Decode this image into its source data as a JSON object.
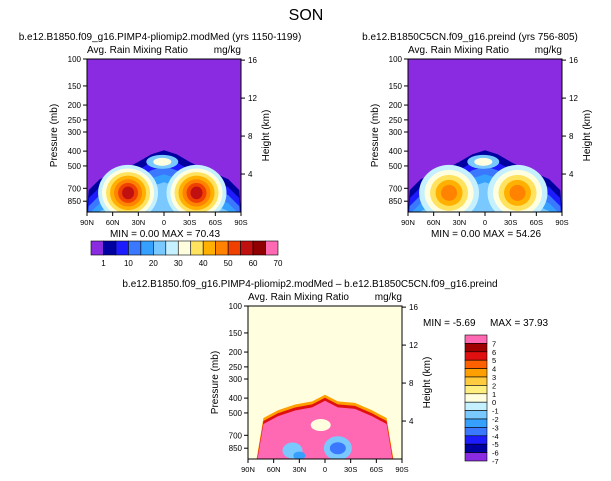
{
  "figure_title": "SON",
  "colors": {
    "seq": [
      "#8a2be2",
      "#0000a0",
      "#1c1cff",
      "#3a78ff",
      "#36a0ff",
      "#79c8ff",
      "#c4f0ff",
      "#ffffe0",
      "#ffe25e",
      "#ffb000",
      "#ff8200",
      "#f04000",
      "#c01010",
      "#900000",
      "#ff69b4"
    ],
    "diff": [
      "#8a2be2",
      "#0000a0",
      "#1c1cff",
      "#3a78ff",
      "#36a0ff",
      "#79c8ff",
      "#c4f0ff",
      "#ffffe0",
      "#ffee80",
      "#ffcc40",
      "#ffa000",
      "#ff6000",
      "#e01010",
      "#a00000",
      "#ff69b4"
    ]
  },
  "chart_data": [
    {
      "type": "heatmap",
      "title": "b.e12.B1850.f09_g16.PIMP4-pliomip2.modMed (yrs 1150-1199)",
      "subtitle_left": "Avg. Rain Mixing Ratio",
      "subtitle_right": "mg/kg",
      "ylabel": "Pressure (mb)",
      "y2label": "Height (km)",
      "x_ticks": [
        "90N",
        "60N",
        "30N",
        "0",
        "30S",
        "60S",
        "90S"
      ],
      "y_ticks": [
        "100",
        "150",
        "200",
        "250",
        "300",
        "400",
        "500",
        "700",
        "850"
      ],
      "y2_ticks": [
        "16",
        "12",
        "8",
        "4"
      ],
      "stats": "MIN = 0.00 MAX = 70.43",
      "maxima": [
        {
          "lat_deg_north": 42,
          "p_mb": 750,
          "value": 70.43
        },
        {
          "lat_deg_north": -35,
          "p_mb": 750,
          "value": 68
        }
      ]
    },
    {
      "type": "heatmap",
      "title": "b.e12.B1850C5CN.f09_g16.preind (yrs 756-805)",
      "subtitle_left": "Avg. Rain Mixing Ratio",
      "subtitle_right": "mg/kg",
      "ylabel": "Pressure (mb)",
      "y2label": "Height (km)",
      "x_ticks": [
        "90N",
        "60N",
        "30N",
        "0",
        "30S",
        "60S",
        "90S"
      ],
      "y_ticks": [
        "100",
        "150",
        "200",
        "250",
        "300",
        "400",
        "500",
        "700",
        "850"
      ],
      "y2_ticks": [
        "16",
        "12",
        "8",
        "4"
      ],
      "stats": "MIN = 0.00 MAX = 54.26",
      "maxima": [
        {
          "lat_deg_north": 42,
          "p_mb": 750,
          "value": 54.26
        },
        {
          "lat_deg_north": -35,
          "p_mb": 750,
          "value": 50
        }
      ]
    },
    {
      "type": "heatmap",
      "title": "b.e12.B1850.f09_g16.PIMP4-pliomip2.modMed – b.e12.B1850C5CN.f09_g16.preind",
      "subtitle_left": "Avg. Rain Mixing Ratio",
      "subtitle_right": "mg/kg",
      "ylabel": "Pressure (mb)",
      "y2label": "Height (km)",
      "x_ticks": [
        "90N",
        "60N",
        "30N",
        "0",
        "30S",
        "60S",
        "90S"
      ],
      "y_ticks": [
        "100",
        "150",
        "200",
        "250",
        "300",
        "400",
        "500",
        "700",
        "850"
      ],
      "y2_ticks": [
        "16",
        "12",
        "8",
        "4"
      ],
      "stats_min": "MIN = -5.69",
      "stats_max": "MAX = 37.93"
    }
  ],
  "colorbar_seq": {
    "labels": [
      "1",
      "10",
      "20",
      "30",
      "40",
      "50",
      "60",
      "70"
    ]
  },
  "colorbar_diff": {
    "labels": [
      "7",
      "6",
      "5",
      "4",
      "3",
      "2",
      "1",
      "0",
      "-1",
      "-2",
      "-3",
      "-4",
      "-5",
      "-6",
      "-7"
    ]
  }
}
